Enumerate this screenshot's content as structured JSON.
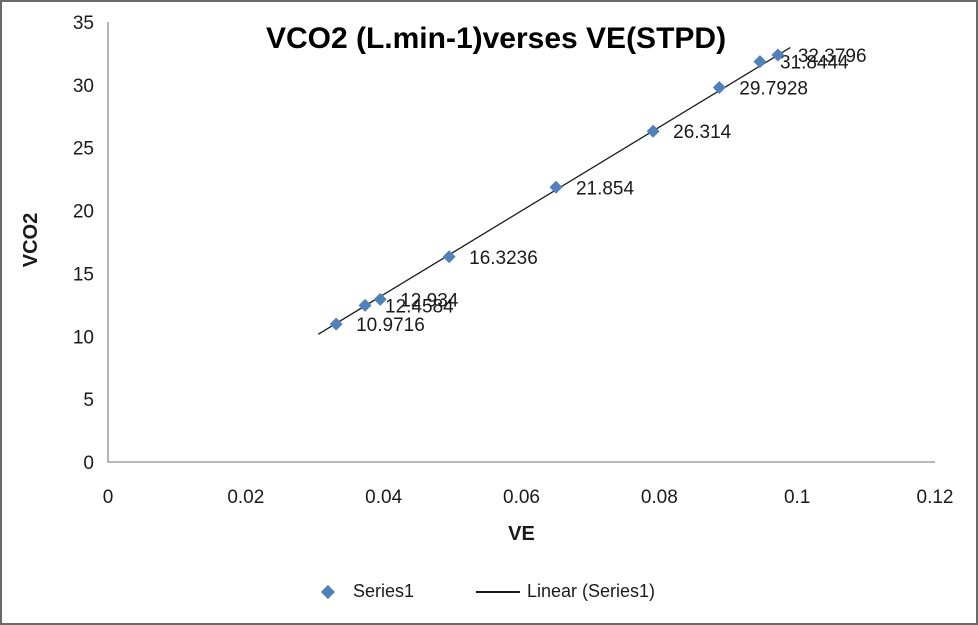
{
  "frame": {
    "background_color": "#ffffff",
    "border_color": "#6a6a6a"
  },
  "chart_data": {
    "type": "scatter",
    "title": "VCO2 (L.min-1)verses VE(STPD)",
    "xlabel": "VE",
    "ylabel": "VCO2",
    "xlim": [
      0,
      0.12
    ],
    "ylim": [
      0,
      35
    ],
    "grid": false,
    "legend_position": "bottom",
    "axis_color": "#8e8e8e",
    "text_color": "#1a1a1a",
    "x_ticks": [
      {
        "value": 0,
        "label": "0"
      },
      {
        "value": 0.02,
        "label": "0.02"
      },
      {
        "value": 0.04,
        "label": "0.04"
      },
      {
        "value": 0.06,
        "label": "0.06"
      },
      {
        "value": 0.08,
        "label": "0.08"
      },
      {
        "value": 0.1,
        "label": "0.1"
      },
      {
        "value": 0.12,
        "label": "0.12"
      }
    ],
    "y_ticks": [
      {
        "value": 0,
        "label": "0"
      },
      {
        "value": 5,
        "label": "5"
      },
      {
        "value": 10,
        "label": "10"
      },
      {
        "value": 15,
        "label": "15"
      },
      {
        "value": 20,
        "label": "20"
      },
      {
        "value": 25,
        "label": "25"
      },
      {
        "value": 30,
        "label": "30"
      },
      {
        "value": 35,
        "label": "35"
      }
    ],
    "series": [
      {
        "name": "Series1",
        "marker": "diamond",
        "color": "#4f81bd",
        "points": [
          {
            "x": 0.0331,
            "y": 10.9716,
            "label": "10.9716"
          },
          {
            "x": 0.0373,
            "y": 12.4584,
            "label": "12.4584"
          },
          {
            "x": 0.0395,
            "y": 12.934,
            "label": "12.934"
          },
          {
            "x": 0.0495,
            "y": 16.3236,
            "label": "16.3236"
          },
          {
            "x": 0.065,
            "y": 21.854,
            "label": "21.854"
          },
          {
            "x": 0.0791,
            "y": 26.314,
            "label": "26.314"
          },
          {
            "x": 0.0887,
            "y": 29.7928,
            "label": "29.7928"
          },
          {
            "x": 0.0946,
            "y": 31.8444,
            "label": "31.8444"
          },
          {
            "x": 0.0972,
            "y": 32.3796,
            "label": "32.3796"
          }
        ]
      }
    ],
    "trendline": {
      "label": "Linear (Series1)",
      "fit": "linear",
      "slope": 333,
      "intercept": 0,
      "x_start": 0.0305,
      "x_end": 0.099,
      "color": "#1a1a1a"
    },
    "legend": [
      {
        "marker": "diamond",
        "label": "Series1"
      },
      {
        "marker": "line",
        "label": "Linear (Series1)"
      }
    ]
  }
}
